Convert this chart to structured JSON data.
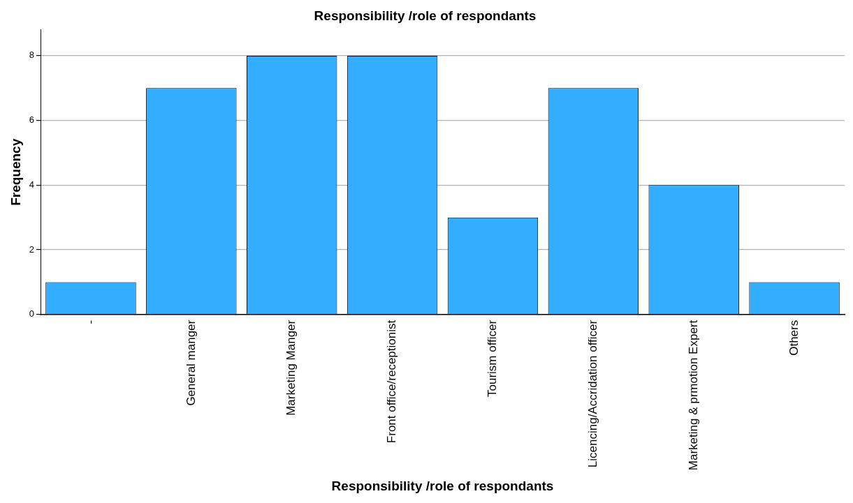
{
  "chart_data": {
    "type": "bar",
    "title": "Responsibility /role of respondants",
    "xlabel": "Responsibility /role of respondants",
    "ylabel": "Frequency",
    "categories": [
      "-",
      "General manger",
      "Marketing Manger",
      "Front office/receptionist",
      "Tourism officer",
      "Licencing/Accridation officer",
      "Marketing & prmotion Expert",
      "Others"
    ],
    "values": [
      1,
      7,
      8,
      8,
      3,
      7,
      4,
      1
    ],
    "color": "#33adff",
    "ylim": [
      0,
      8.8
    ],
    "yticks": [
      0,
      2,
      4,
      6,
      8
    ],
    "grid": "y",
    "legend": false
  }
}
